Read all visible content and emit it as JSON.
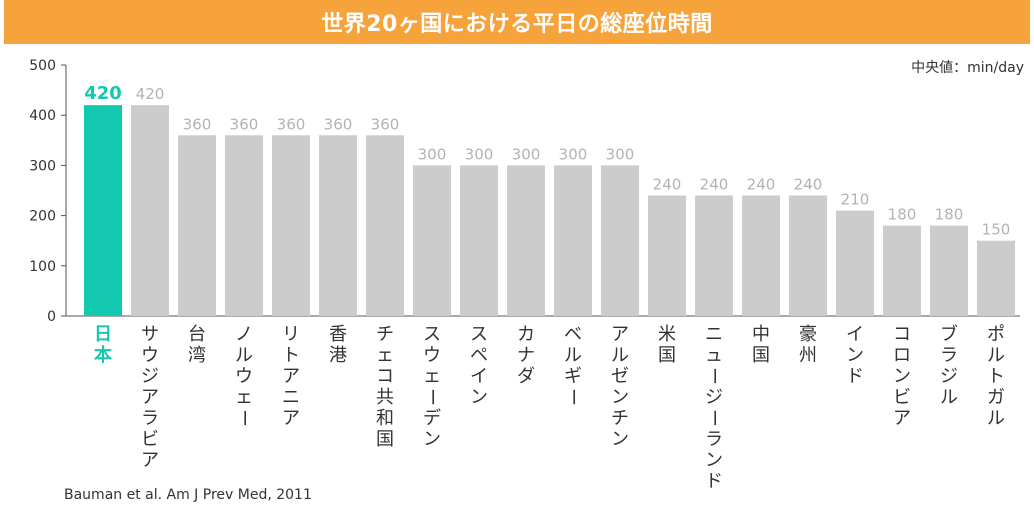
{
  "title": "世界20ヶ国における平日の総座位時間",
  "unit_label": "中央値：min/day",
  "source": "Bauman et al. Am J Prev Med, 2011",
  "colors": {
    "highlight": "#12c9b0",
    "bar": "#cccccc",
    "label_default": "#b3b3b3",
    "category_default": "#333333",
    "banner": "#f7a33c"
  },
  "chart_data": {
    "type": "bar",
    "title": "世界20ヶ国における平日の総座位時間",
    "ylabel": "中央値：min/day",
    "xlabel": "",
    "ylim": [
      0,
      500
    ],
    "yticks": [
      0,
      100,
      200,
      300,
      400,
      500
    ],
    "grid": false,
    "highlight_index": 0,
    "categories": [
      "日本",
      "サウジアラビア",
      "台湾",
      "ノルウェー",
      "リトアニア",
      "香港",
      "チェコ共和国",
      "スウェーデン",
      "スペイン",
      "カナダ",
      "ベルギー",
      "アルゼンチン",
      "米国",
      "ニュージーランド",
      "中国",
      "豪州",
      "インド",
      "コロンビア",
      "ブラジル",
      "ポルトガル"
    ],
    "values": [
      420,
      420,
      360,
      360,
      360,
      360,
      360,
      300,
      300,
      300,
      300,
      300,
      240,
      240,
      240,
      240,
      210,
      180,
      180,
      150
    ]
  }
}
